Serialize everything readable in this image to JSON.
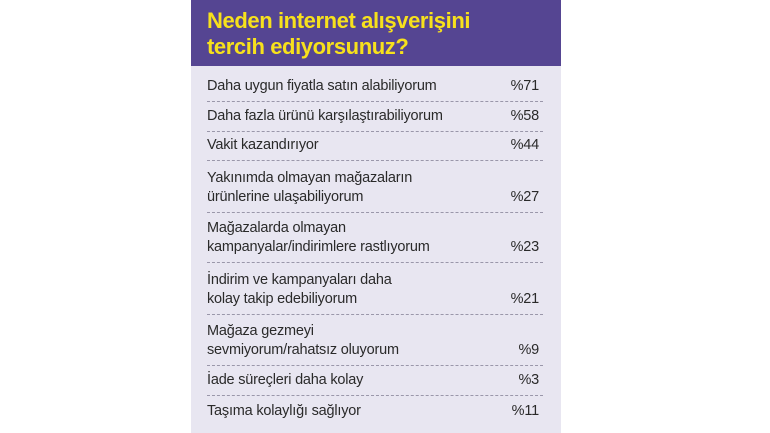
{
  "colors": {
    "header_bg": "#554592",
    "title": "#f7e11c",
    "panel_bg": "#e8e6f1"
  },
  "title": "Neden internet alışverişini\ntercih ediyorsunuz?",
  "chart_data": {
    "type": "table",
    "title": "Neden internet alışverişini tercih ediyorsunuz?",
    "rows": [
      {
        "label": "Daha uygun fiyatla satın alabiliyorum",
        "value_text": "%71",
        "value": 71
      },
      {
        "label": "Daha fazla ürünü karşılaştırabiliyorum",
        "value_text": "%58",
        "value": 58
      },
      {
        "label": "Vakit kazandırıyor",
        "value_text": "%44",
        "value": 44
      },
      {
        "label": "Yakınımda olmayan mağazaların\nürünlerine ulaşabiliyorum",
        "value_text": "%27",
        "value": 27
      },
      {
        "label": "Mağazalarda olmayan\nkampanyalar/indirimlere rastlıyorum",
        "value_text": "%23",
        "value": 23
      },
      {
        "label": "İndirim ve kampanyaları daha\nkolay takip edebiliyorum",
        "value_text": "%21",
        "value": 21
      },
      {
        "label": "Mağaza gezmeyi\nsevmiyorum/rahatsız oluyorum",
        "value_text": "%9",
        "value": 9
      },
      {
        "label": "İade süreçleri daha kolay",
        "value_text": "%3",
        "value": 3
      },
      {
        "label": "Taşıma kolaylığı sağlıyor",
        "value_text": "%11",
        "value": 11
      }
    ]
  }
}
